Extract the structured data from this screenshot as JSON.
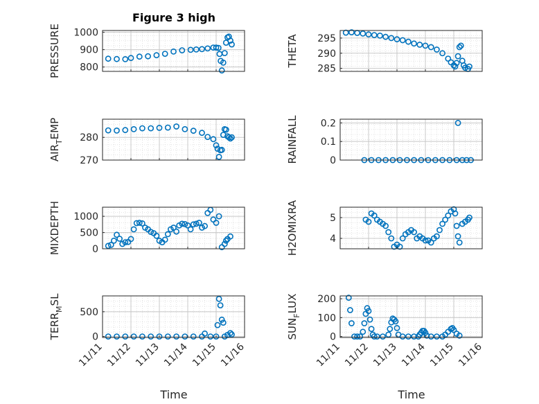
{
  "figure": {
    "title": "Figure 3 high",
    "marker_color": "#0072BD"
  },
  "chart_data": [
    {
      "type": "scatter",
      "title": "Figure 3 high",
      "ylabel": "PRESSURE",
      "ylim": [
        775,
        1010
      ],
      "yticks": [
        800,
        900,
        1000
      ],
      "xlim": [
        0,
        5
      ],
      "x": [
        0.2,
        0.5,
        0.8,
        1.0,
        1.3,
        1.6,
        1.9,
        2.2,
        2.5,
        2.8,
        3.1,
        3.3,
        3.5,
        3.7,
        3.9,
        4.0,
        4.08,
        4.12,
        4.16,
        4.2,
        4.25,
        4.3,
        4.35,
        4.4,
        4.45,
        4.5,
        4.55
      ],
      "y": [
        848,
        846,
        845,
        852,
        860,
        862,
        868,
        876,
        889,
        896,
        899,
        901,
        903,
        907,
        912,
        912,
        910,
        875,
        835,
        780,
        825,
        880,
        940,
        970,
        975,
        952,
        930
      ]
    },
    {
      "type": "scatter",
      "ylabel": "THETA",
      "ylim": [
        284,
        297.5
      ],
      "yticks": [
        285,
        290,
        295
      ],
      "xlim": [
        0,
        5
      ],
      "x": [
        0.2,
        0.4,
        0.6,
        0.8,
        1.0,
        1.2,
        1.4,
        1.6,
        1.8,
        2.0,
        2.2,
        2.4,
        2.6,
        2.8,
        3.0,
        3.2,
        3.4,
        3.6,
        3.8,
        3.9,
        4.0,
        4.05,
        4.1,
        4.15,
        4.2,
        4.25,
        4.3,
        4.35,
        4.4,
        4.5,
        4.55
      ],
      "y": [
        296.8,
        296.9,
        296.7,
        296.5,
        296.2,
        296.0,
        295.8,
        295.4,
        295.0,
        294.6,
        294.3,
        293.8,
        293.2,
        292.8,
        292.5,
        292.0,
        291.2,
        290.0,
        288.2,
        287.0,
        286.0,
        285.6,
        286.8,
        289.0,
        292.0,
        292.5,
        287.5,
        286.0,
        285.2,
        284.8,
        285.6
      ]
    },
    {
      "type": "scatter",
      "ylabel": "AIR_TEMP",
      "ylim": [
        270,
        288
      ],
      "yticks": [
        270,
        280
      ],
      "xlim": [
        0,
        5
      ],
      "x": [
        0.2,
        0.5,
        0.8,
        1.1,
        1.4,
        1.7,
        2.0,
        2.3,
        2.6,
        2.9,
        3.2,
        3.5,
        3.7,
        3.9,
        4.0,
        4.05,
        4.1,
        4.15,
        4.2,
        4.25,
        4.3,
        4.35,
        4.4,
        4.45,
        4.5,
        4.55
      ],
      "y": [
        283.1,
        283.0,
        283.2,
        283.6,
        284.0,
        284.0,
        284.2,
        284.3,
        284.8,
        283.6,
        282.9,
        282.0,
        280.2,
        279.2,
        276.5,
        275.0,
        271.4,
        274.3,
        274.5,
        281.1,
        283.6,
        283.4,
        280.5,
        280.0,
        279.5,
        280.0
      ]
    },
    {
      "type": "scatter",
      "ylabel": "RAINFALL",
      "ylim": [
        0,
        0.22
      ],
      "yticks": [
        0,
        0.1,
        0.2
      ],
      "xlim": [
        0,
        5
      ],
      "x": [
        0.85,
        1.1,
        1.35,
        1.6,
        1.85,
        2.1,
        2.35,
        2.6,
        2.85,
        3.1,
        3.35,
        3.6,
        3.85,
        4.1,
        4.15,
        4.3,
        4.45,
        4.6
      ],
      "y": [
        0,
        0,
        0,
        0,
        0,
        0,
        0,
        0,
        0,
        0,
        0,
        0,
        0,
        0,
        0.2,
        0,
        0,
        0
      ]
    },
    {
      "type": "scatter",
      "ylabel": "MIXDEPTH",
      "ylim": [
        0,
        1280
      ],
      "yticks": [
        0,
        500,
        1000
      ],
      "xlim": [
        0,
        5
      ],
      "x": [
        0.2,
        0.3,
        0.4,
        0.5,
        0.6,
        0.7,
        0.8,
        0.9,
        1.0,
        1.1,
        1.2,
        1.3,
        1.4,
        1.5,
        1.6,
        1.7,
        1.8,
        1.9,
        2.0,
        2.1,
        2.2,
        2.3,
        2.4,
        2.5,
        2.6,
        2.7,
        2.8,
        2.9,
        3.0,
        3.1,
        3.2,
        3.3,
        3.4,
        3.5,
        3.6,
        3.7,
        3.8,
        3.9,
        4.0,
        4.1,
        4.2,
        4.3,
        4.35,
        4.4,
        4.5
      ],
      "y": [
        90,
        120,
        250,
        430,
        310,
        150,
        200,
        210,
        300,
        600,
        790,
        800,
        780,
        650,
        600,
        520,
        480,
        400,
        250,
        200,
        280,
        450,
        600,
        650,
        530,
        720,
        770,
        760,
        720,
        600,
        750,
        770,
        800,
        650,
        700,
        1100,
        1200,
        900,
        800,
        1000,
        50,
        150,
        250,
        300,
        380
      ]
    },
    {
      "type": "scatter",
      "ylabel": "H2OMIXRA",
      "ylim": [
        3.5,
        5.5
      ],
      "yticks": [
        4,
        5
      ],
      "xlim": [
        0,
        5
      ],
      "x": [
        0.9,
        1.0,
        1.1,
        1.2,
        1.3,
        1.4,
        1.5,
        1.6,
        1.7,
        1.8,
        1.9,
        2.0,
        2.1,
        2.2,
        2.3,
        2.4,
        2.5,
        2.6,
        2.7,
        2.8,
        2.9,
        3.0,
        3.1,
        3.2,
        3.3,
        3.4,
        3.5,
        3.6,
        3.7,
        3.8,
        3.9,
        4.0,
        4.05,
        4.1,
        4.15,
        4.2,
        4.3,
        4.4,
        4.5,
        4.55
      ],
      "y": [
        4.9,
        4.8,
        5.2,
        5.1,
        4.9,
        4.8,
        4.7,
        4.6,
        4.3,
        4.0,
        3.6,
        3.7,
        3.6,
        4.0,
        4.2,
        4.3,
        4.4,
        4.3,
        4.0,
        4.1,
        4.0,
        3.9,
        3.9,
        3.8,
        4.0,
        4.1,
        4.4,
        4.7,
        4.9,
        5.1,
        5.3,
        5.4,
        5.2,
        4.6,
        4.1,
        3.8,
        4.7,
        4.8,
        4.9,
        5.0
      ]
    },
    {
      "type": "scatter",
      "ylabel": "TERR_MSL",
      "ylim": [
        -20,
        820
      ],
      "yticks": [
        0,
        500
      ],
      "xlim": [
        0,
        5
      ],
      "x": [
        0.2,
        0.5,
        0.8,
        1.1,
        1.4,
        1.7,
        2.0,
        2.3,
        2.6,
        2.9,
        3.2,
        3.5,
        3.6,
        3.8,
        4.0,
        4.05,
        4.1,
        4.15,
        4.2,
        4.25,
        4.3,
        4.4,
        4.5,
        4.55
      ],
      "y": [
        0,
        0,
        0,
        0,
        0,
        0,
        0,
        0,
        0,
        0,
        0,
        0,
        60,
        0,
        0,
        230,
        760,
        630,
        340,
        280,
        0,
        30,
        70,
        40
      ]
    },
    {
      "type": "scatter",
      "ylabel": "SUN_FLUX",
      "ylim": [
        -5,
        215
      ],
      "yticks": [
        0,
        100,
        200
      ],
      "xlim": [
        0,
        5
      ],
      "x": [
        0.3,
        0.35,
        0.4,
        0.5,
        0.6,
        0.7,
        0.8,
        0.85,
        0.9,
        0.95,
        1.0,
        1.05,
        1.1,
        1.15,
        1.2,
        1.3,
        1.5,
        1.7,
        1.75,
        1.8,
        1.85,
        1.9,
        1.95,
        2.0,
        2.05,
        2.2,
        2.4,
        2.6,
        2.75,
        2.8,
        2.85,
        2.9,
        2.95,
        3.0,
        3.05,
        3.2,
        3.4,
        3.6,
        3.7,
        3.8,
        3.9,
        3.95,
        4.0,
        4.1,
        4.2
      ],
      "y": [
        205,
        140,
        70,
        0,
        0,
        0,
        25,
        70,
        120,
        150,
        135,
        90,
        40,
        10,
        0,
        0,
        0,
        10,
        40,
        75,
        95,
        90,
        80,
        45,
        10,
        0,
        0,
        0,
        0,
        10,
        20,
        30,
        30,
        20,
        5,
        0,
        0,
        0,
        10,
        25,
        40,
        45,
        35,
        15,
        5
      ]
    }
  ],
  "x_axis": {
    "ticklabels": [
      "11/11",
      "11/12",
      "11/13",
      "11/14",
      "11/15",
      "11/16"
    ],
    "label": "Time"
  },
  "ylabel_sub": {
    "AIR": {
      "base": "AIR",
      "sub": "T",
      "rest": "EMP"
    },
    "TERR": {
      "base": "TERR",
      "sub": "M",
      "rest": "SL"
    },
    "SUN": {
      "base": "SUN",
      "sub": "F",
      "rest": "LUX"
    }
  }
}
